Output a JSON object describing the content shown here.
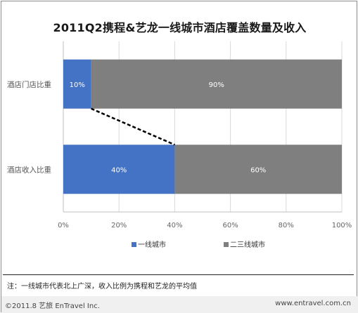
{
  "chart_data": {
    "type": "bar",
    "orientation": "horizontal",
    "stacked": true,
    "title": "2011Q2携程&艺龙一线城市酒店覆盖数量及收入",
    "categories": [
      "酒店门店比重",
      "酒店收入比重"
    ],
    "series": [
      {
        "name": "一线城市",
        "values": [
          10,
          40
        ],
        "labels": [
          "10%",
          "40%"
        ],
        "color": "#4472c4"
      },
      {
        "name": "二三线城市",
        "values": [
          90,
          60
        ],
        "labels": [
          "90%",
          "60%"
        ],
        "color": "#7f7f7f"
      }
    ],
    "x_ticks": [
      "0%",
      "20%",
      "40%",
      "60%",
      "80%",
      "100%"
    ],
    "xlim": [
      0,
      100
    ],
    "grid": true,
    "legend": "bottom",
    "connector": "dashed line linking end of 一线城市 bars"
  },
  "note": "注：一线城市代表北上广深，收入比例为携程和艺龙的平均值",
  "footer": {
    "copyright": "©2011.8 艺旅 EnTravel Inc.",
    "url": "www.entravel.com.cn"
  }
}
